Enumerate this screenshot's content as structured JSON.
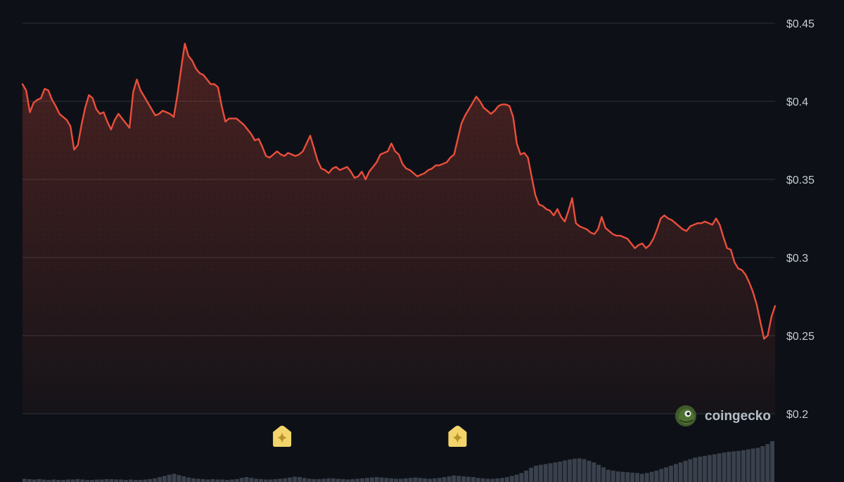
{
  "brand": {
    "name": "coingecko",
    "logo_icon": "gecko-icon"
  },
  "event_markers": [
    {
      "icon": "sparkle-icon",
      "position_fraction": 0.345
    },
    {
      "icon": "sparkle-icon",
      "position_fraction": 0.578
    }
  ],
  "colors": {
    "background": "#0d1117",
    "line": "#ea4e3c",
    "grid": "#2b313b",
    "volume": "#3a414d",
    "marker": "#f3d56b"
  },
  "chart_data": {
    "type": "area",
    "title": "",
    "xlabel": "",
    "ylabel": "",
    "ylim": [
      0.2,
      0.45
    ],
    "y_ticks": [
      0.2,
      0.25,
      0.3,
      0.35,
      0.4,
      0.45
    ],
    "y_tick_labels": [
      "$0.2",
      "$0.25",
      "$0.3",
      "$0.35",
      "$0.4",
      "$0.45"
    ],
    "y_axis_position": "right",
    "grid": true,
    "x_tick_labels": [],
    "series": [
      {
        "values": [
          0.411,
          0.407,
          0.393,
          0.399,
          0.401,
          0.402,
          0.408,
          0.407,
          0.401,
          0.397,
          0.392,
          0.39,
          0.388,
          0.384,
          0.369,
          0.372,
          0.385,
          0.396,
          0.404,
          0.402,
          0.395,
          0.392,
          0.393,
          0.387,
          0.382,
          0.388,
          0.392,
          0.389,
          0.386,
          0.383,
          0.406,
          0.414,
          0.407,
          0.403,
          0.399,
          0.395,
          0.391,
          0.392,
          0.394,
          0.393,
          0.392,
          0.39,
          0.404,
          0.421,
          0.437,
          0.429,
          0.426,
          0.421,
          0.418,
          0.417,
          0.414,
          0.411,
          0.411,
          0.409,
          0.397,
          0.387,
          0.389,
          0.389,
          0.389,
          0.387,
          0.385,
          0.382,
          0.379,
          0.375,
          0.376,
          0.371,
          0.365,
          0.364,
          0.366,
          0.368,
          0.366,
          0.365,
          0.367,
          0.366,
          0.365,
          0.366,
          0.368,
          0.373,
          0.378,
          0.37,
          0.362,
          0.357,
          0.356,
          0.354,
          0.357,
          0.358,
          0.356,
          0.357,
          0.358,
          0.355,
          0.351,
          0.352,
          0.355,
          0.35,
          0.355,
          0.358,
          0.361,
          0.366,
          0.367,
          0.368,
          0.373,
          0.368,
          0.366,
          0.36,
          0.357,
          0.356,
          0.354,
          0.352,
          0.353,
          0.354,
          0.356,
          0.357,
          0.359,
          0.359,
          0.36,
          0.361,
          0.364,
          0.366,
          0.376,
          0.386,
          0.391,
          0.395,
          0.399,
          0.403,
          0.4,
          0.396,
          0.394,
          0.392,
          0.394,
          0.397,
          0.398,
          0.398,
          0.397,
          0.39,
          0.373,
          0.366,
          0.367,
          0.364,
          0.352,
          0.34,
          0.334,
          0.333,
          0.331,
          0.33,
          0.327,
          0.331,
          0.326,
          0.323,
          0.33,
          0.338,
          0.322,
          0.32,
          0.319,
          0.318,
          0.316,
          0.315,
          0.318,
          0.326,
          0.319,
          0.317,
          0.315,
          0.314,
          0.314,
          0.313,
          0.312,
          0.309,
          0.306,
          0.308,
          0.309,
          0.306,
          0.308,
          0.312,
          0.318,
          0.325,
          0.327,
          0.325,
          0.324,
          0.322,
          0.32,
          0.318,
          0.317,
          0.32,
          0.321,
          0.322,
          0.322,
          0.323,
          0.322,
          0.321,
          0.325,
          0.321,
          0.313,
          0.306,
          0.305,
          0.297,
          0.293,
          0.292,
          0.289,
          0.284,
          0.278,
          0.27,
          0.259,
          0.248,
          0.25,
          0.262,
          0.269
        ]
      }
    ],
    "volume": [
      0.08,
      0.07,
      0.06,
      0.07,
      0.06,
      0.05,
      0.06,
      0.05,
      0.05,
      0.06,
      0.06,
      0.07,
      0.06,
      0.05,
      0.05,
      0.06,
      0.06,
      0.07,
      0.07,
      0.06,
      0.06,
      0.05,
      0.06,
      0.05,
      0.05,
      0.06,
      0.07,
      0.09,
      0.12,
      0.15,
      0.18,
      0.2,
      0.17,
      0.14,
      0.11,
      0.09,
      0.08,
      0.07,
      0.06,
      0.07,
      0.06,
      0.06,
      0.05,
      0.06,
      0.07,
      0.1,
      0.12,
      0.1,
      0.08,
      0.07,
      0.06,
      0.06,
      0.07,
      0.08,
      0.09,
      0.11,
      0.13,
      0.12,
      0.1,
      0.08,
      0.07,
      0.07,
      0.08,
      0.09,
      0.09,
      0.08,
      0.07,
      0.06,
      0.07,
      0.08,
      0.09,
      0.1,
      0.11,
      0.12,
      0.11,
      0.1,
      0.09,
      0.08,
      0.08,
      0.09,
      0.1,
      0.11,
      0.1,
      0.09,
      0.08,
      0.09,
      0.1,
      0.12,
      0.14,
      0.16,
      0.15,
      0.14,
      0.13,
      0.12,
      0.1,
      0.09,
      0.08,
      0.08,
      0.09,
      0.1,
      0.12,
      0.15,
      0.18,
      0.22,
      0.28,
      0.35,
      0.4,
      0.42,
      0.44,
      0.46,
      0.48,
      0.5,
      0.53,
      0.55,
      0.57,
      0.58,
      0.56,
      0.52,
      0.48,
      0.42,
      0.36,
      0.3,
      0.28,
      0.26,
      0.25,
      0.24,
      0.23,
      0.22,
      0.2,
      0.22,
      0.25,
      0.28,
      0.32,
      0.36,
      0.4,
      0.44,
      0.48,
      0.52,
      0.56,
      0.6,
      0.62,
      0.64,
      0.66,
      0.68,
      0.7,
      0.72,
      0.74,
      0.75,
      0.76,
      0.78,
      0.8,
      0.82,
      0.84,
      0.88,
      0.93,
      1.0
    ]
  }
}
